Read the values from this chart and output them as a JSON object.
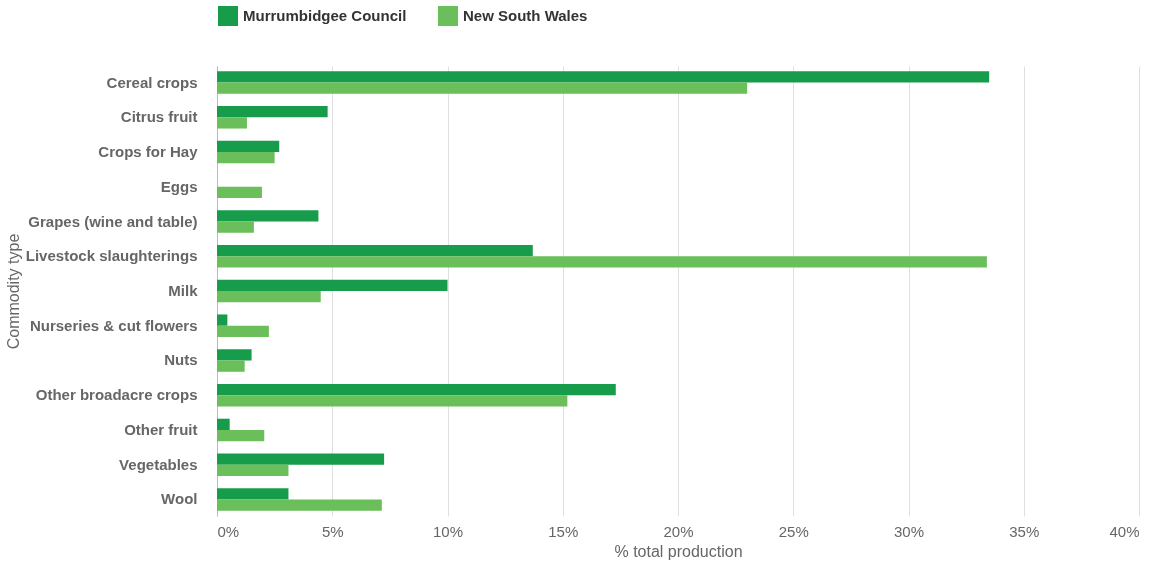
{
  "chart_data": {
    "type": "bar",
    "orientation": "horizontal",
    "xlabel": "% total production",
    "ylabel": "Commodity type",
    "categories": [
      "Cereal crops",
      "Citrus fruit",
      "Crops for Hay",
      "Eggs",
      "Grapes (wine and table)",
      "Livestock slaughterings",
      "Milk",
      "Nurseries & cut flowers",
      "Nuts",
      "Other broadacre crops",
      "Other fruit",
      "Vegetables",
      "Wool"
    ],
    "series": [
      {
        "name": "Murrumbidgee Council",
        "color": "#169c4a",
        "values": [
          33.5,
          4.8,
          2.7,
          0,
          4.4,
          13.7,
          10.0,
          0.45,
          1.5,
          17.3,
          0.55,
          7.25,
          3.1
        ]
      },
      {
        "name": "New South Wales",
        "color": "#6abf5a",
        "values": [
          23.0,
          1.3,
          2.5,
          1.95,
          1.6,
          33.4,
          4.5,
          2.25,
          1.2,
          15.2,
          2.05,
          3.1,
          7.15
        ]
      }
    ],
    "xlim": [
      0,
      40
    ],
    "xticks": [
      {
        "value": 0,
        "label": "0%"
      },
      {
        "value": 5,
        "label": "5%"
      },
      {
        "value": 10,
        "label": "10%"
      },
      {
        "value": 15,
        "label": "15%"
      },
      {
        "value": 20,
        "label": "20%"
      },
      {
        "value": 25,
        "label": "25%"
      },
      {
        "value": 30,
        "label": "30%"
      },
      {
        "value": 35,
        "label": "35%"
      },
      {
        "value": 40,
        "label": "40%"
      }
    ],
    "grid": "x",
    "legend": "top left"
  }
}
